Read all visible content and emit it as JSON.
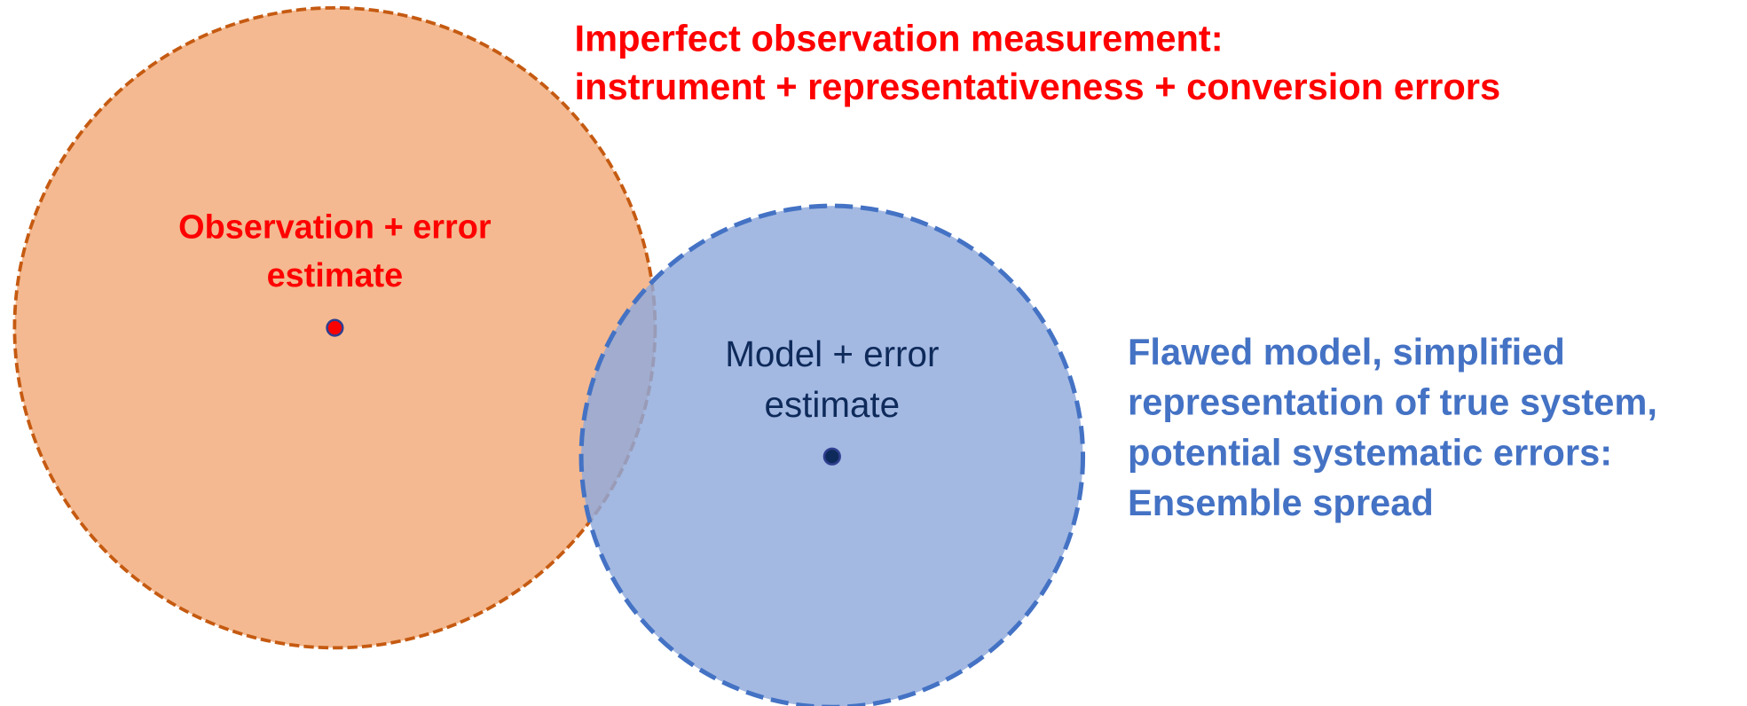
{
  "top_note": {
    "lines": [
      "Imperfect observation measurement:",
      "instrument + representativeness + conversion errors"
    ]
  },
  "observation": {
    "label_lines": [
      "Observation + error",
      "estimate"
    ]
  },
  "model": {
    "label_lines": [
      "Model + error",
      "estimate"
    ]
  },
  "model_note": {
    "lines": [
      "Flawed model, simplified",
      "representation of true system,",
      "potential systematic errors:",
      "Ensemble spread"
    ]
  }
}
